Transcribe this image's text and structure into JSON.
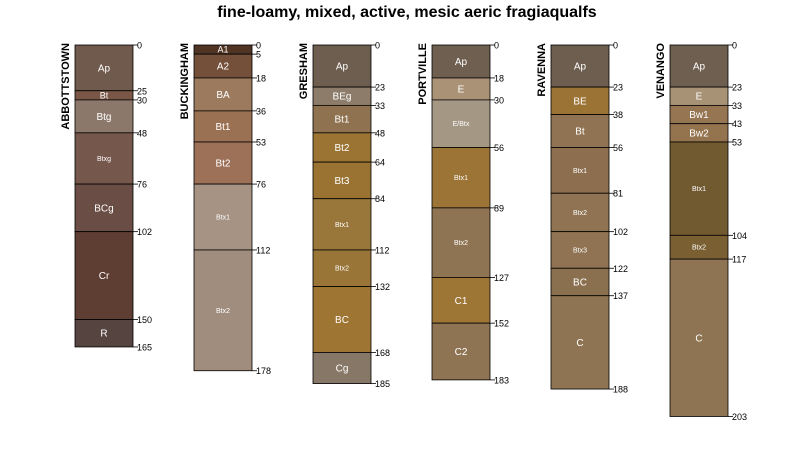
{
  "chart_data": {
    "type": "soil-profile",
    "title": "fine-loamy, mixed, active, mesic aeric fragiaqualfs",
    "depth_units": "cm",
    "ylim": [
      0,
      203
    ],
    "profiles": [
      {
        "name": "ABBOTTSTOWN",
        "horizons": [
          {
            "name": "Ap",
            "top": 0,
            "bottom": 25,
            "color": "#705a4e"
          },
          {
            "name": "Bt",
            "top": 25,
            "bottom": 30,
            "color": "#7a5646"
          },
          {
            "name": "Btg",
            "top": 30,
            "bottom": 48,
            "color": "#8b786a"
          },
          {
            "name": "Btxg",
            "top": 48,
            "bottom": 76,
            "color": "#75574c"
          },
          {
            "name": "BCg",
            "top": 76,
            "bottom": 102,
            "color": "#6a4d45"
          },
          {
            "name": "Cr",
            "top": 102,
            "bottom": 150,
            "color": "#5e3d33"
          },
          {
            "name": "R",
            "top": 150,
            "bottom": 165,
            "color": "#564440"
          }
        ]
      },
      {
        "name": "BUCKINGHAM",
        "horizons": [
          {
            "name": "A1",
            "top": 0,
            "bottom": 5,
            "color": "#4f3323"
          },
          {
            "name": "A2",
            "top": 5,
            "bottom": 18,
            "color": "#74503a"
          },
          {
            "name": "BA",
            "top": 18,
            "bottom": 36,
            "color": "#9b7a5e"
          },
          {
            "name": "Bt1",
            "top": 36,
            "bottom": 53,
            "color": "#9a7152"
          },
          {
            "name": "Bt2",
            "top": 53,
            "bottom": 76,
            "color": "#9d7158"
          },
          {
            "name": "Btx1",
            "top": 76,
            "bottom": 112,
            "color": "#a69384"
          },
          {
            "name": "Btx2",
            "top": 112,
            "bottom": 178,
            "color": "#a18d7e"
          }
        ]
      },
      {
        "name": "GRESHAM",
        "horizons": [
          {
            "name": "Ap",
            "top": 0,
            "bottom": 23,
            "color": "#6e5e4f"
          },
          {
            "name": "BEg",
            "top": 23,
            "bottom": 33,
            "color": "#8d7c6a"
          },
          {
            "name": "Bt1",
            "top": 33,
            "bottom": 48,
            "color": "#8f7350"
          },
          {
            "name": "Bt2",
            "top": 48,
            "bottom": 64,
            "color": "#9b7434"
          },
          {
            "name": "Bt3",
            "top": 64,
            "bottom": 84,
            "color": "#9a7333"
          },
          {
            "name": "Btx1",
            "top": 84,
            "bottom": 112,
            "color": "#99773b"
          },
          {
            "name": "Btx2",
            "top": 112,
            "bottom": 132,
            "color": "#9a7538"
          },
          {
            "name": "BC",
            "top": 132,
            "bottom": 168,
            "color": "#9e7532"
          },
          {
            "name": "Cg",
            "top": 168,
            "bottom": 185,
            "color": "#867766"
          }
        ]
      },
      {
        "name": "PORTVILLE",
        "horizons": [
          {
            "name": "Ap",
            "top": 0,
            "bottom": 18,
            "color": "#6f5f51"
          },
          {
            "name": "E",
            "top": 18,
            "bottom": 30,
            "color": "#a99275"
          },
          {
            "name": "E/Btx",
            "top": 30,
            "bottom": 56,
            "color": "#a49784"
          },
          {
            "name": "Btx1",
            "top": 56,
            "bottom": 89,
            "color": "#9b7436"
          },
          {
            "name": "Btx2",
            "top": 89,
            "bottom": 127,
            "color": "#8f7453"
          },
          {
            "name": "C1",
            "top": 127,
            "bottom": 152,
            "color": "#9d7535"
          },
          {
            "name": "C2",
            "top": 152,
            "bottom": 183,
            "color": "#8e7453"
          }
        ]
      },
      {
        "name": "RAVENNA",
        "horizons": [
          {
            "name": "Ap",
            "top": 0,
            "bottom": 23,
            "color": "#6e5e4f"
          },
          {
            "name": "BE",
            "top": 23,
            "bottom": 38,
            "color": "#9b7335"
          },
          {
            "name": "Bt",
            "top": 38,
            "bottom": 56,
            "color": "#8f7352"
          },
          {
            "name": "Btx1",
            "top": 56,
            "bottom": 81,
            "color": "#8d6f50"
          },
          {
            "name": "Btx2",
            "top": 81,
            "bottom": 102,
            "color": "#8f7352"
          },
          {
            "name": "Btx3",
            "top": 102,
            "bottom": 122,
            "color": "#8f7352"
          },
          {
            "name": "BC",
            "top": 122,
            "bottom": 137,
            "color": "#8b7050"
          },
          {
            "name": "C",
            "top": 137,
            "bottom": 188,
            "color": "#8e7452"
          }
        ]
      },
      {
        "name": "VENANGO",
        "horizons": [
          {
            "name": "Ap",
            "top": 0,
            "bottom": 23,
            "color": "#6f5f51"
          },
          {
            "name": "E",
            "top": 23,
            "bottom": 33,
            "color": "#a79276"
          },
          {
            "name": "Bw1",
            "top": 33,
            "bottom": 43,
            "color": "#967553"
          },
          {
            "name": "Bw2",
            "top": 43,
            "bottom": 53,
            "color": "#94734f"
          },
          {
            "name": "Btx1",
            "top": 53,
            "bottom": 104,
            "color": "#725a30"
          },
          {
            "name": "Btx2",
            "top": 104,
            "bottom": 117,
            "color": "#7a5f32"
          },
          {
            "name": "C",
            "top": 117,
            "bottom": 203,
            "color": "#8e7452"
          }
        ]
      }
    ]
  }
}
